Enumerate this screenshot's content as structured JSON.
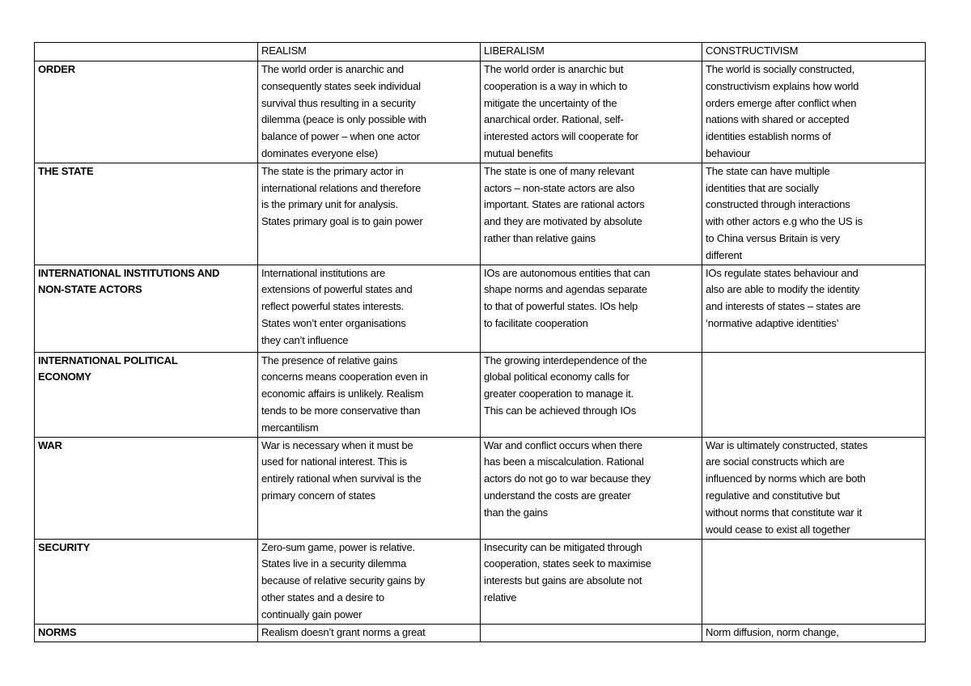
{
  "header": [
    "",
    "REALISM",
    "LIBERALISM",
    "CONSTRUCTIVISM"
  ],
  "rows": [
    {
      "label": "ORDER",
      "cells": [
        "The world order is anarchic and\nconsequently states seek individual\nsurvival thus resulting in a security\ndilemma (peace is only possible with\nbalance of power – when one actor\ndominates everyone else)",
        "The world order is anarchic but\ncooperation is a way in which to\nmitigate the uncertainty of the\nanarchical order. Rational, self-\ninterested actors will cooperate for\nmutual benefits",
        "The world is socially constructed,\nconstructivism explains how world\norders emerge after conflict when\nnations with shared or accepted\nidentities establish norms of\nbehaviour"
      ]
    },
    {
      "label": "THE STATE",
      "cells": [
        "The state is the primary actor in\ninternational relations and therefore\nis the primary unit for analysis.\nStates primary goal is to gain power",
        "The state is one of many relevant\nactors – non-state actors are also\nimportant. States are rational actors\nand they are motivated by absolute\nrather than relative gains",
        "The state can have multiple\nidentities that are socially\nconstructed through interactions\nwith other actors e.g who the US is\nto China versus Britain is very\ndifferent"
      ]
    },
    {
      "label": "INTERNATIONAL INSTITUTIONS AND\nNON-STATE ACTORS",
      "cells": [
        "International institutions are\nextensions of powerful states and\nreflect powerful states interests.\nStates won’t enter organisations\nthey can’t influence",
        "IOs are autonomous entities that can\nshape norms and agendas separate\nto that of powerful states. IOs help\nto facilitate cooperation",
        "IOs regulate states behaviour and\nalso are able to modify the identity\nand interests of states – states are\n‘normative adaptive identities’"
      ]
    },
    {
      "label": "INTERNATIONAL POLITICAL\nECONOMY",
      "cells": [
        "The presence of relative gains\nconcerns means cooperation even in\neconomic affairs is unlikely. Realism\ntends to be more conservative than\nmercantilism",
        "The growing interdependence of the\nglobal political economy calls for\ngreater cooperation to manage it.\nThis can be achieved through IOs",
        ""
      ]
    },
    {
      "label": "WAR",
      "cells": [
        "War is necessary when it must be\nused for national interest. This is\nentirely rational when survival is the\nprimary concern of states",
        "War and conflict occurs when there\nhas been a miscalculation. Rational\nactors do not go to war because they\nunderstand the costs are greater\nthan the gains",
        "War is ultimately constructed, states\nare social constructs which are\ninfluenced by norms which are both\nregulative and constitutive but\nwithout norms that constitute war it\nwould cease to exist all together"
      ]
    },
    {
      "label": "SECURITY",
      "cells": [
        "Zero-sum game, power is relative.\nStates live in a security dilemma\nbecause of relative security gains by\nother states and a desire to\ncontinually gain power",
        "Insecurity can be mitigated through\ncooperation, states seek to maximise\ninterests but gains are absolute not\nrelative",
        ""
      ]
    },
    {
      "label": "NORMS",
      "cells": [
        "Realism doesn’t grant norms a great",
        "",
        "Norm diffusion, norm change,"
      ]
    }
  ]
}
